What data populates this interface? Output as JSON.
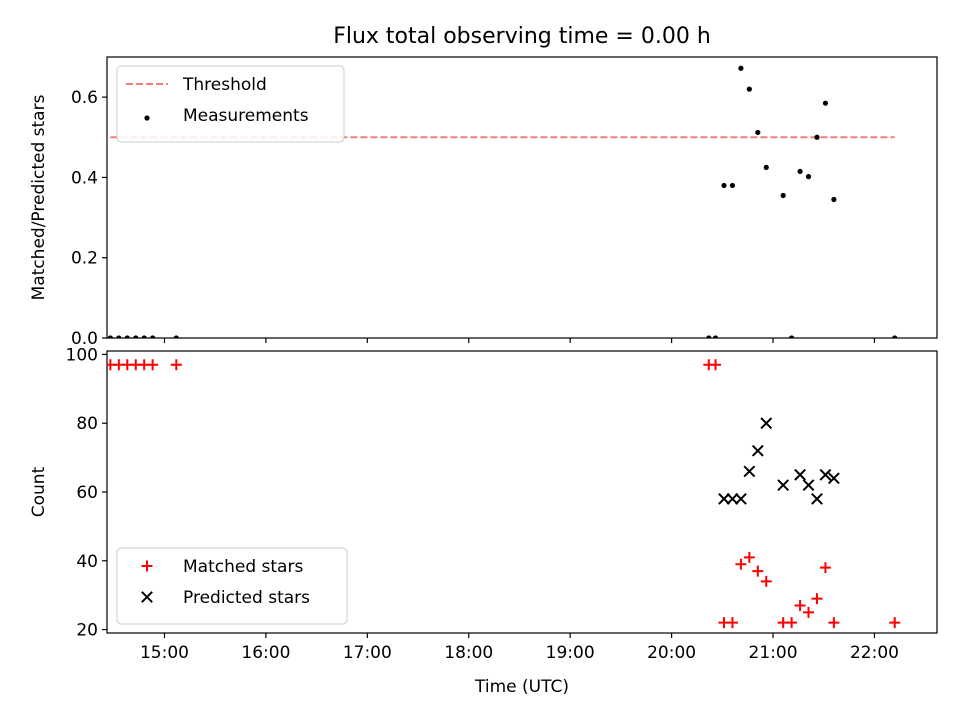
{
  "figure": {
    "title": "Flux total observing time = 0.00 h"
  },
  "chart_data": [
    {
      "type": "scatter",
      "ylabel": "Matched/Predicted stars",
      "xlabel": "",
      "xlim": [
        "14:26",
        "22:37"
      ],
      "ylim": [
        0,
        0.7
      ],
      "x_ticks": [
        "15:00",
        "16:00",
        "17:00",
        "18:00",
        "19:00",
        "20:00",
        "21:00",
        "22:00"
      ],
      "y_ticks": [
        "0.0",
        "0.2",
        "0.4",
        "0.6"
      ],
      "grid": false,
      "legend": "top-left",
      "colors": {
        "threshold": "#f08080",
        "measurements": "#000000"
      },
      "threshold": {
        "name": "Threshold",
        "x": [
          "14:28",
          "22:12"
        ],
        "y": 0.5
      },
      "series": [
        {
          "name": "Measurements",
          "x": [
            "14:28",
            "14:33",
            "14:38",
            "14:43",
            "14:48",
            "14:53",
            "15:07",
            "20:22",
            "20:26",
            "20:31",
            "20:36",
            "20:41",
            "20:46",
            "20:51",
            "20:56",
            "21:06",
            "21:11",
            "21:16",
            "21:21",
            "21:26",
            "21:31",
            "21:36",
            "22:12"
          ],
          "y": [
            0,
            0,
            0,
            0,
            0,
            0,
            0,
            0,
            0,
            0.38,
            0.38,
            0.672,
            0.62,
            0.512,
            0.425,
            0.355,
            0,
            0.415,
            0.402,
            0.5,
            0.585,
            0.345,
            0
          ]
        }
      ]
    },
    {
      "type": "scatter",
      "ylabel": "Count",
      "xlabel": "Time (UTC)",
      "xlim": [
        "14:26",
        "22:37"
      ],
      "ylim": [
        19,
        101
      ],
      "x_ticks": [
        "15:00",
        "16:00",
        "17:00",
        "18:00",
        "19:00",
        "20:00",
        "21:00",
        "22:00"
      ],
      "y_ticks": [
        "20",
        "40",
        "60",
        "80",
        "100"
      ],
      "grid": false,
      "legend": "bottom-left",
      "colors": {
        "matched": "#ff0000",
        "predicted": "#000000"
      },
      "series": [
        {
          "name": "Matched stars",
          "marker": "plus",
          "x": [
            "14:28",
            "14:33",
            "14:38",
            "14:43",
            "14:48",
            "14:53",
            "15:07",
            "20:22",
            "20:26",
            "20:31",
            "20:36",
            "20:41",
            "20:46",
            "20:51",
            "20:56",
            "21:06",
            "21:11",
            "21:16",
            "21:21",
            "21:26",
            "21:31",
            "21:36",
            "22:12"
          ],
          "y": [
            97,
            97,
            97,
            97,
            97,
            97,
            97,
            97,
            97,
            22,
            22,
            39,
            41,
            37,
            34,
            22,
            22,
            27,
            25,
            29,
            38,
            22,
            22
          ]
        },
        {
          "name": "Predicted stars",
          "marker": "x",
          "x": [
            "20:31",
            "20:36",
            "20:41",
            "20:46",
            "20:51",
            "20:56",
            "21:06",
            "21:16",
            "21:21",
            "21:26",
            "21:31",
            "21:36"
          ],
          "y": [
            58,
            58,
            58,
            66,
            72,
            80,
            62,
            65,
            62,
            58,
            65,
            64
          ]
        }
      ]
    }
  ]
}
